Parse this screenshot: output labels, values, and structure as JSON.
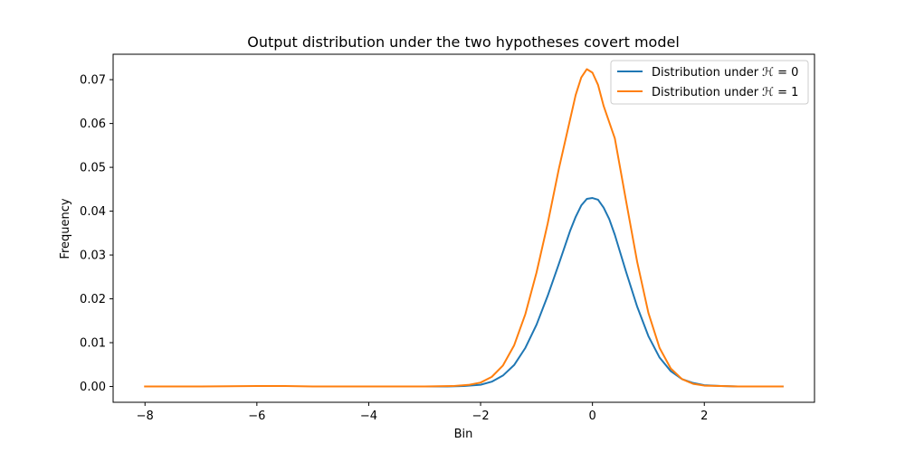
{
  "chart_data": {
    "type": "line",
    "title": "Output distribution under the two hypotheses covert model",
    "xlabel": "Bin",
    "ylabel": "Frequency",
    "xlim": [
      -8.57,
      3.97
    ],
    "ylim": [
      -0.0036,
      0.0758
    ],
    "xticks": [
      -8,
      -6,
      -4,
      -2,
      0,
      2
    ],
    "xtick_labels": [
      "−8",
      "−6",
      "−4",
      "−2",
      "0",
      "2"
    ],
    "yticks": [
      0.0,
      0.01,
      0.02,
      0.03,
      0.04,
      0.05,
      0.06,
      0.07
    ],
    "ytick_labels": [
      "0.00",
      "0.01",
      "0.02",
      "0.03",
      "0.04",
      "0.05",
      "0.06",
      "0.07"
    ],
    "grid": false,
    "legend_position": "top-right",
    "series": [
      {
        "name": "Distribution under ℋ = 0",
        "color": "#1f77b4",
        "x": [
          -3.35,
          -3.0,
          -2.6,
          -2.3,
          -2.0,
          -1.8,
          -1.6,
          -1.4,
          -1.2,
          -1.0,
          -0.8,
          -0.6,
          -0.4,
          -0.3,
          -0.2,
          -0.1,
          0.0,
          0.1,
          0.2,
          0.3,
          0.4,
          0.6,
          0.8,
          1.0,
          1.2,
          1.4,
          1.6,
          1.8,
          2.0,
          2.3,
          2.6,
          3.0,
          3.4
        ],
        "y": [
          0.0,
          0.0,
          0.0,
          0.0001,
          0.0004,
          0.0011,
          0.0025,
          0.0049,
          0.0088,
          0.0141,
          0.0207,
          0.028,
          0.0355,
          0.0387,
          0.0413,
          0.0428,
          0.043,
          0.0426,
          0.0408,
          0.0382,
          0.0346,
          0.0262,
          0.0182,
          0.0115,
          0.0066,
          0.0035,
          0.0017,
          0.0008,
          0.0003,
          0.0001,
          0.0,
          0.0,
          0.0
        ]
      },
      {
        "name": "Distribution under ℋ = 1",
        "color": "#ff7f0e",
        "x": [
          -8.0,
          -7.0,
          -6.0,
          -5.5,
          -5.0,
          -4.0,
          -3.0,
          -2.5,
          -2.2,
          -2.0,
          -1.8,
          -1.6,
          -1.4,
          -1.2,
          -1.0,
          -0.8,
          -0.6,
          -0.4,
          -0.3,
          -0.2,
          -0.1,
          0.0,
          0.1,
          0.2,
          0.4,
          0.6,
          0.8,
          1.0,
          1.2,
          1.4,
          1.6,
          1.8,
          2.0,
          2.3,
          2.6,
          3.0,
          3.4
        ],
        "y": [
          0.0,
          0.0,
          0.0001,
          0.0001,
          0.0,
          0.0,
          0.0,
          0.0001,
          0.0004,
          0.0009,
          0.0022,
          0.0048,
          0.0094,
          0.0165,
          0.026,
          0.0372,
          0.0497,
          0.0609,
          0.0665,
          0.0705,
          0.0724,
          0.0716,
          0.0688,
          0.064,
          0.0566,
          0.0424,
          0.0284,
          0.0168,
          0.0088,
          0.0041,
          0.0017,
          0.0006,
          0.0002,
          0.0001,
          0.0,
          0.0,
          0.0
        ]
      }
    ]
  }
}
